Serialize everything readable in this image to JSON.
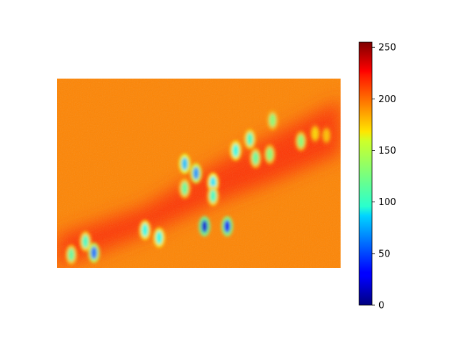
{
  "chart_data": {
    "type": "heatmap",
    "title": "",
    "xlabel": "",
    "ylabel": "",
    "axes_visible": false,
    "colormap": "jet",
    "value_range": [
      0,
      255
    ],
    "background_level": 190,
    "band_level": 210,
    "colorbar": {
      "ticks": [
        0,
        50,
        100,
        150,
        200,
        250
      ],
      "tick_labels": [
        "0",
        "50",
        "100",
        "150",
        "200",
        "250"
      ],
      "range": [
        0,
        255
      ]
    },
    "low_value_features": [
      {
        "x": 0.05,
        "y": 0.93,
        "value": 120
      },
      {
        "x": 0.1,
        "y": 0.86,
        "value": 110
      },
      {
        "x": 0.13,
        "y": 0.92,
        "value": 60
      },
      {
        "x": 0.31,
        "y": 0.8,
        "value": 100
      },
      {
        "x": 0.36,
        "y": 0.84,
        "value": 100
      },
      {
        "x": 0.45,
        "y": 0.45,
        "value": 80
      },
      {
        "x": 0.49,
        "y": 0.5,
        "value": 70
      },
      {
        "x": 0.45,
        "y": 0.58,
        "value": 120
      },
      {
        "x": 0.55,
        "y": 0.55,
        "value": 90
      },
      {
        "x": 0.55,
        "y": 0.62,
        "value": 110
      },
      {
        "x": 0.52,
        "y": 0.78,
        "value": 20
      },
      {
        "x": 0.6,
        "y": 0.78,
        "value": 30
      },
      {
        "x": 0.63,
        "y": 0.38,
        "value": 100
      },
      {
        "x": 0.68,
        "y": 0.32,
        "value": 110
      },
      {
        "x": 0.7,
        "y": 0.42,
        "value": 120
      },
      {
        "x": 0.75,
        "y": 0.4,
        "value": 130
      },
      {
        "x": 0.76,
        "y": 0.22,
        "value": 130
      },
      {
        "x": 0.86,
        "y": 0.33,
        "value": 130
      },
      {
        "x": 0.91,
        "y": 0.29,
        "value": 170
      },
      {
        "x": 0.95,
        "y": 0.3,
        "value": 175
      }
    ]
  }
}
